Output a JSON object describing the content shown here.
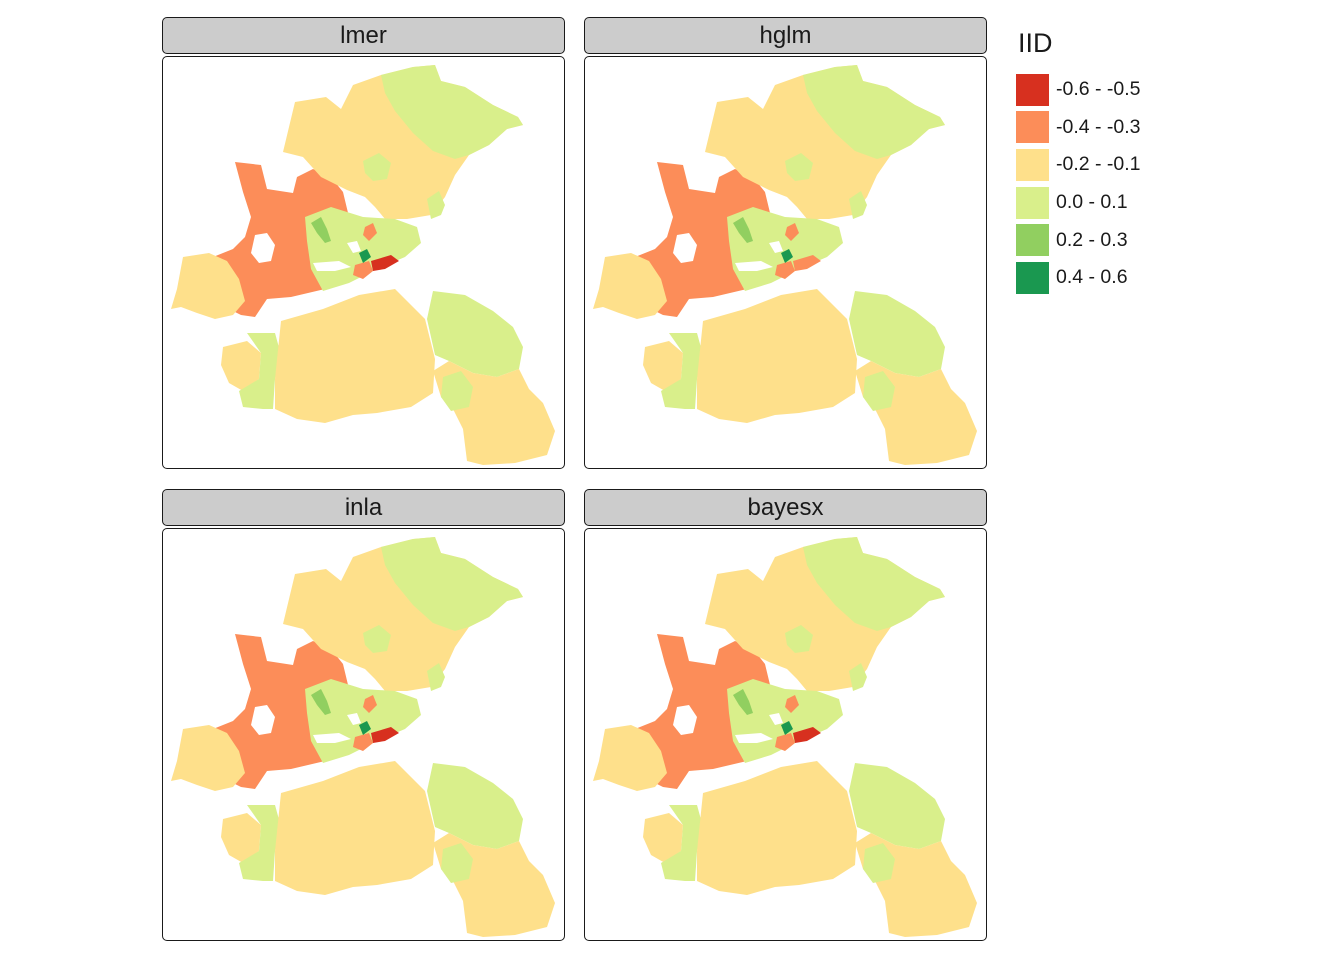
{
  "panels": [
    {
      "title": "lmer",
      "fills": {
        "nw_large": 1,
        "n_large": 2,
        "ne_strip": 3,
        "north_b": 3,
        "center": 3,
        "west_mid": 2,
        "sw_small": 2,
        "sw_left": 3,
        "s_center": 2,
        "e_mid": 3,
        "se_large": 2,
        "se_inner": 3,
        "n_inner": 3,
        "wet_left": 4,
        "c_red": 0,
        "c_orange": 1,
        "c_green": 5,
        "top_orange": 1
      }
    },
    {
      "title": "hglm",
      "fills": {
        "nw_large": 1,
        "n_large": 2,
        "ne_strip": 3,
        "north_b": 3,
        "center": 3,
        "west_mid": 2,
        "sw_small": 2,
        "sw_left": 3,
        "s_center": 2,
        "e_mid": 3,
        "se_large": 2,
        "se_inner": 3,
        "n_inner": 3,
        "wet_left": 4,
        "c_red": 1,
        "c_orange": 1,
        "c_green": 5,
        "top_orange": 1
      }
    },
    {
      "title": "inla",
      "fills": {
        "nw_large": 1,
        "n_large": 2,
        "ne_strip": 3,
        "north_b": 3,
        "center": 3,
        "west_mid": 2,
        "sw_small": 2,
        "sw_left": 3,
        "s_center": 2,
        "e_mid": 3,
        "se_large": 2,
        "se_inner": 3,
        "n_inner": 3,
        "wet_left": 4,
        "c_red": 0,
        "c_orange": 1,
        "c_green": 5,
        "top_orange": 1
      }
    },
    {
      "title": "bayesx",
      "fills": {
        "nw_large": 1,
        "n_large": 2,
        "ne_strip": 3,
        "north_b": 3,
        "center": 3,
        "west_mid": 2,
        "sw_small": 2,
        "sw_left": 3,
        "s_center": 2,
        "e_mid": 3,
        "se_large": 2,
        "se_inner": 3,
        "n_inner": 3,
        "wet_left": 4,
        "c_red": 0,
        "c_orange": 1,
        "c_green": 5,
        "top_orange": 1
      }
    }
  ],
  "legend": {
    "title": "IID",
    "items": [
      {
        "label": "-0.6 - -0.5",
        "color": "#d7301f"
      },
      {
        "label": "-0.4 - -0.3",
        "color": "#fc8d59"
      },
      {
        "label": "-0.2 - -0.1",
        "color": "#fee08b"
      },
      {
        "label": "0.0 - 0.1",
        "color": "#d9ef8b"
      },
      {
        "label": "0.2 - 0.3",
        "color": "#91cf60"
      },
      {
        "label": "0.4 - 0.6",
        "color": "#1a9850"
      }
    ]
  }
}
